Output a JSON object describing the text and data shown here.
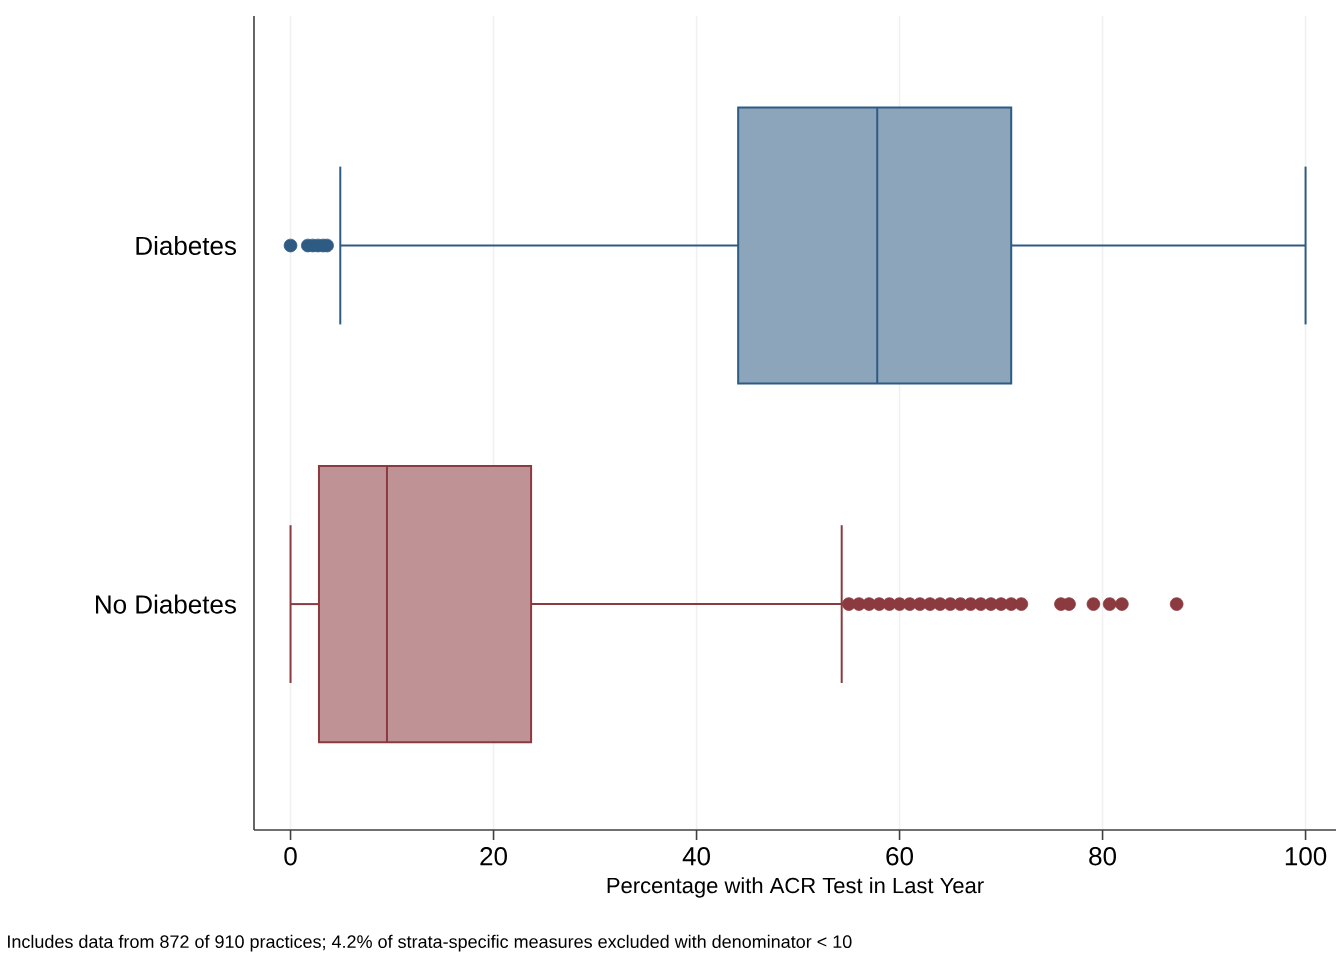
{
  "chart_data": {
    "type": "box",
    "orientation": "horizontal",
    "categories": [
      "Diabetes",
      "No Diabetes"
    ],
    "boxes": [
      {
        "low": 4.9,
        "q1": 44.1,
        "median": 57.8,
        "q3": 71,
        "high": 100,
        "outliers": [
          0,
          1.7,
          2.2,
          2.7,
          3.2,
          3.6
        ]
      },
      {
        "low": 0,
        "q1": 2.8,
        "median": 9.5,
        "q3": 23.7,
        "high": 54.3,
        "outliers": [
          55,
          56,
          57,
          58,
          59,
          60,
          61,
          62,
          63,
          64,
          65,
          66,
          67,
          68,
          69,
          70,
          71,
          72,
          75.9,
          76.7,
          79.1,
          80.7,
          81.9,
          87.3
        ]
      }
    ],
    "colors": [
      "#2e5b84",
      "#8b3a3f"
    ],
    "xlabel": "Percentage with ACR Test in Last Year",
    "xlim": [
      -3.6,
      103
    ],
    "xticks": [
      0,
      20,
      40,
      60,
      80,
      100
    ],
    "grid": "x",
    "annotations": [
      "Includes data from 872 of 910 practices; 4.2% of strata-specific measures excluded with denominator < 10"
    ]
  }
}
